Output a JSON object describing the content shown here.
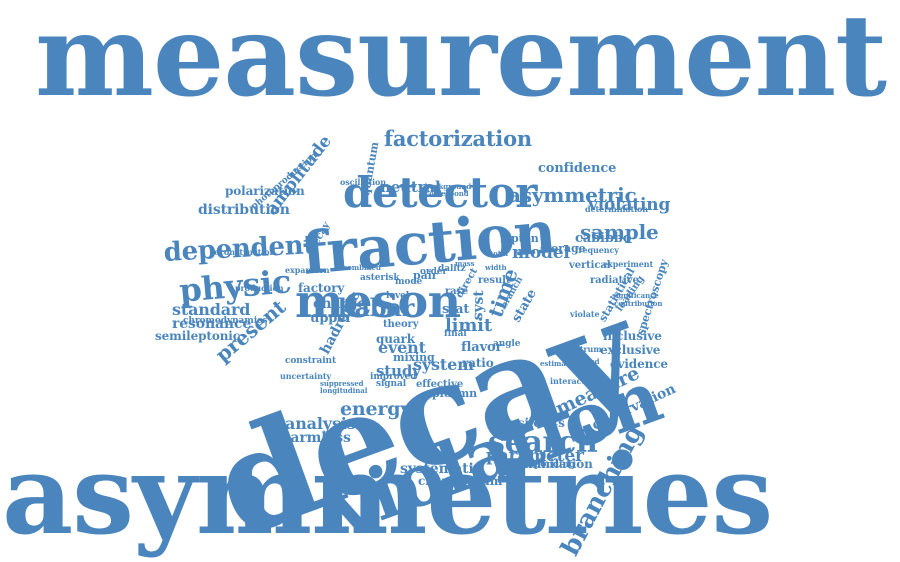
{
  "color": "#4a86bd",
  "words": [
    "measurement",
    "asymmetries",
    "branching",
    "decay",
    "violation",
    "fraction",
    "meson",
    "detector",
    "factorization",
    "confidence",
    "asymmetric",
    "neutral",
    "violating",
    "sample",
    "dependent",
    "physic",
    "model",
    "cabibbo",
    "amplitude",
    "distribution",
    "polarization",
    "oscillation",
    "standard",
    "resonance",
    "present",
    "semileptonic",
    "babar",
    "factory",
    "charge",
    "upper",
    "hadronic",
    "energy",
    "analysis",
    "charmless",
    "event",
    "system",
    "study",
    "limit",
    "measure",
    "search",
    "parameter",
    "annihilation",
    "systematic",
    "charmonium",
    "upsilon4s",
    "observation",
    "exclusive",
    "inclusive",
    "evidence",
    "spectroscopy",
    "statistical",
    "lepton",
    "storage",
    "ratio",
    "mixing",
    "flavor",
    "quark",
    "theory",
    "result",
    "stat",
    "syst",
    "time",
    "plusmn",
    "state",
    "leading",
    "vertical",
    "radiative",
    "frequency",
    "experiment",
    "direct",
    "mode",
    "pair",
    "level",
    "rare",
    "angle",
    "final",
    "signal",
    "effective",
    "decay",
    "production",
    "reconstruction",
    "chromodynamics",
    "constraint",
    "uncertainty",
    "expansion",
    "asterisk",
    "photoproduction",
    "determination",
    "correspond",
    "corresponding",
    "background",
    "quantum",
    "improved",
    "suppressed",
    "longitudinal",
    "contribution",
    "significance",
    "spectrum",
    "observed",
    "interaction",
    "order",
    "combined",
    "dalitz",
    "mass",
    "width",
    "total",
    "branch",
    "violate",
    "estimate"
  ]
}
